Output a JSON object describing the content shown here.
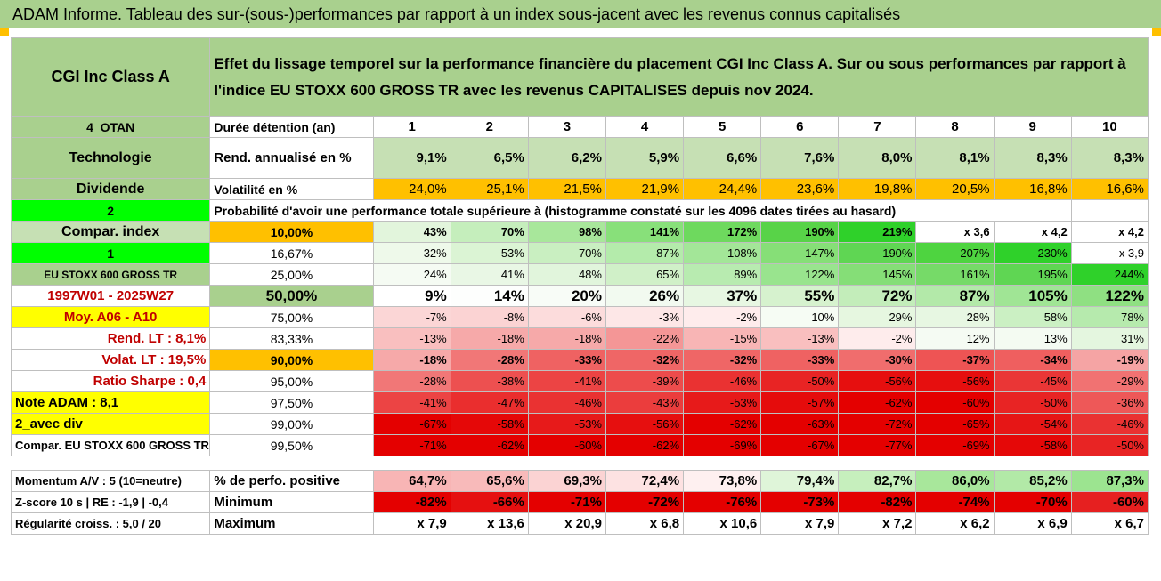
{
  "title": "ADAM Informe. Tableau des sur-(sous-)performances par rapport à un index sous-jacent avec les revenus connus capitalisés",
  "header": {
    "fund": "CGI Inc Class A",
    "description_line1": "Effet du lissage temporel sur la performance financière du placement CGI Inc Class A. Sur ou sous performances par rapport à",
    "description_line2": "l'indice EU STOXX 600 GROSS TR avec les revenus CAPITALISES depuis nov 2024."
  },
  "left_labels": {
    "otan": "4_OTAN",
    "sector": "Technologie",
    "dividend": "Dividende",
    "two": "2",
    "compar_index": "Compar. index",
    "one": "1",
    "index_name": "EU STOXX 600 GROSS TR",
    "period": "1997W01 - 2025W27",
    "moy": "Moy. A06 - A10",
    "rend_lt": "Rend. LT :   8,1%",
    "volat_lt": "Volat. LT :   19,5%",
    "sharpe": "Ratio Sharpe :   0,4",
    "note": "Note ADAM : 8,1",
    "avec_div": "2_avec div",
    "compar_index_name": "Compar. EU STOXX 600 GROSS TR",
    "momentum": "Momentum A/V : 5 (10=neutre)",
    "zscore": "Z-score 10 s | RE : -1,9 | -0,4",
    "regularite": "Régularité croiss. : 5,0 / 20"
  },
  "row_labels": {
    "duree": "Durée détention (an)",
    "rend": "Rend. annualisé en %",
    "volat": "Volatilité en %",
    "proba": "Probabilité d'avoir une performance totale supérieure à (histogramme constaté sur les 4096 dates tirées au hasard)",
    "perfo_pos": "% de perfo. positive",
    "minimum": "Minimum",
    "maximum": "Maximum"
  },
  "years": [
    "1",
    "2",
    "3",
    "4",
    "5",
    "6",
    "7",
    "8",
    "9",
    "10"
  ],
  "rend": [
    "9,1%",
    "6,5%",
    "6,2%",
    "5,9%",
    "6,6%",
    "7,6%",
    "8,0%",
    "8,1%",
    "8,3%",
    "8,3%"
  ],
  "volat": [
    "24,0%",
    "25,1%",
    "21,5%",
    "21,9%",
    "24,4%",
    "23,6%",
    "19,8%",
    "20,5%",
    "16,8%",
    "16,6%"
  ],
  "proba_rows": [
    {
      "threshold": "10,00%",
      "values": [
        "43%",
        "70%",
        "98%",
        "141%",
        "172%",
        "190%",
        "219%",
        "x 3,6",
        "x 4,2",
        "x 4,2"
      ],
      "colors": [
        "#e2f5dc",
        "#c5eebc",
        "#a8e79b",
        "#88e07a",
        "#6ed95e",
        "#58d348",
        "#2fd12a",
        "#ffffff",
        "#ffffff",
        "#ffffff"
      ]
    },
    {
      "threshold": "16,67%",
      "values": [
        "32%",
        "53%",
        "70%",
        "87%",
        "108%",
        "147%",
        "190%",
        "207%",
        "230%",
        "x 3,9"
      ],
      "colors": [
        "#eef9ea",
        "#dbf4d4",
        "#c9efc1",
        "#b4ebab",
        "#a3e698",
        "#86df77",
        "#5fd653",
        "#4ed440",
        "#2fd12a",
        "#ffffff"
      ]
    },
    {
      "threshold": "25,00%",
      "values": [
        "24%",
        "41%",
        "48%",
        "65%",
        "89%",
        "122%",
        "145%",
        "161%",
        "195%",
        "244%"
      ],
      "colors": [
        "#f5fbf3",
        "#e9f7e5",
        "#e1f5dc",
        "#d0f0c8",
        "#b8ebb0",
        "#99e48e",
        "#85de77",
        "#76da68",
        "#5fd653",
        "#2fd12a"
      ]
    },
    {
      "threshold": "50,00%",
      "values": [
        "9%",
        "14%",
        "20%",
        "26%",
        "37%",
        "55%",
        "72%",
        "87%",
        "105%",
        "122%"
      ],
      "colors": [
        "#ffffff",
        "#fdfefd",
        "#f8fcf7",
        "#f2faf0",
        "#e7f7e2",
        "#d6f2ce",
        "#c3edba",
        "#b3e9a9",
        "#a0e595",
        "#8fe082"
      ]
    },
    {
      "threshold": "75,00%",
      "values": [
        "-7%",
        "-8%",
        "-6%",
        "-3%",
        "-2%",
        "10%",
        "29%",
        "28%",
        "58%",
        "78%"
      ],
      "colors": [
        "#fbd6d6",
        "#fbd3d3",
        "#fcdcdc",
        "#fde7e7",
        "#feecec",
        "#f6fcf4",
        "#e6f7e0",
        "#e7f7e2",
        "#cbf0c3",
        "#b6eaad"
      ]
    },
    {
      "threshold": "83,33%",
      "values": [
        "-13%",
        "-18%",
        "-18%",
        "-22%",
        "-15%",
        "-13%",
        "-2%",
        "12%",
        "13%",
        "31%"
      ],
      "colors": [
        "#f9bfbf",
        "#f6a9a9",
        "#f6a9a9",
        "#f49696",
        "#f8b5b5",
        "#f9bfbf",
        "#feecec",
        "#f5fbf3",
        "#f4fbf2",
        "#e4f6df"
      ]
    },
    {
      "threshold": "90,00%",
      "values": [
        "-18%",
        "-28%",
        "-33%",
        "-32%",
        "-32%",
        "-33%",
        "-30%",
        "-37%",
        "-34%",
        "-19%"
      ],
      "colors": [
        "#f6a9a9",
        "#f17777",
        "#ef6262",
        "#ef6666",
        "#ef6666",
        "#ef6262",
        "#f06d6d",
        "#ee5454",
        "#ef5f5f",
        "#f5a4a4"
      ]
    },
    {
      "threshold": "95,00%",
      "values": [
        "-28%",
        "-38%",
        "-41%",
        "-39%",
        "-46%",
        "-50%",
        "-56%",
        "-56%",
        "-45%",
        "-29%"
      ],
      "colors": [
        "#f17777",
        "#ed5050",
        "#ec4444",
        "#ed4c4c",
        "#ea3232",
        "#e82424",
        "#e60f0f",
        "#e60f0f",
        "#ea3636",
        "#f17272"
      ]
    },
    {
      "threshold": "97,50%",
      "values": [
        "-41%",
        "-47%",
        "-46%",
        "-43%",
        "-53%",
        "-57%",
        "-62%",
        "-60%",
        "-50%",
        "-36%"
      ],
      "colors": [
        "#ec4444",
        "#ea2e2e",
        "#ea3232",
        "#eb3d3d",
        "#e71a1a",
        "#e50c0c",
        "#e40000",
        "#e40000",
        "#e82424",
        "#ee5858"
      ]
    },
    {
      "threshold": "99,00%",
      "values": [
        "-67%",
        "-58%",
        "-53%",
        "-56%",
        "-62%",
        "-63%",
        "-72%",
        "-65%",
        "-54%",
        "-46%"
      ],
      "colors": [
        "#e40000",
        "#e50808",
        "#e71a1a",
        "#e60f0f",
        "#e40000",
        "#e40000",
        "#e40000",
        "#e40000",
        "#e61616",
        "#ea3232"
      ]
    },
    {
      "threshold": "99,50%",
      "values": [
        "-71%",
        "-62%",
        "-60%",
        "-62%",
        "-69%",
        "-67%",
        "-77%",
        "-69%",
        "-58%",
        "-50%"
      ],
      "colors": [
        "#e40000",
        "#e40000",
        "#e40000",
        "#e40000",
        "#e40000",
        "#e40000",
        "#e40000",
        "#e40000",
        "#e50808",
        "#e82424"
      ]
    }
  ],
  "perfo_pos": [
    "64,7%",
    "65,6%",
    "69,3%",
    "72,4%",
    "73,8%",
    "79,4%",
    "82,7%",
    "86,0%",
    "85,2%",
    "87,3%"
  ],
  "perfo_colors": [
    "#f8b5b5",
    "#f8baba",
    "#fbd3d3",
    "#fde2e2",
    "#fef0f0",
    "#dff5d9",
    "#c6efbd",
    "#a8e79b",
    "#b2e9a7",
    "#9ce490"
  ],
  "minimum": [
    "-82%",
    "-66%",
    "-71%",
    "-72%",
    "-76%",
    "-73%",
    "-82%",
    "-74%",
    "-70%",
    "-60%"
  ],
  "minimum_colors": [
    "#e40000",
    "#e51010",
    "#e40000",
    "#e40000",
    "#e40000",
    "#e40000",
    "#e40000",
    "#e40000",
    "#e40000",
    "#e62020"
  ],
  "maximum": [
    "x 7,9",
    "x 13,6",
    "x 20,9",
    "x 6,8",
    "x 10,6",
    "x 7,9",
    "x 7,2",
    "x 6,2",
    "x 6,9",
    "x 6,7"
  ],
  "colors": {
    "title_bg": "#a9d08e",
    "header_bg": "#a9d08e",
    "rend_bg": "#c6e0b4",
    "volat_bg": "#ffc000",
    "bright_green": "#00ff00",
    "yellow": "#ffff00",
    "red_text": "#c00000"
  }
}
